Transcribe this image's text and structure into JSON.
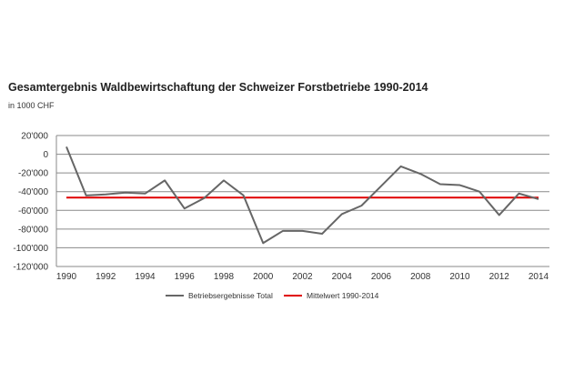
{
  "chart_data": {
    "type": "line",
    "title": "Gesamtergebnis Waldbewirtschaftung der Schweizer Forstbetriebe 1990-2014",
    "subtitle": "in 1000 CHF",
    "xlabel": "",
    "ylabel": "",
    "x": [
      1990,
      1991,
      1992,
      1993,
      1994,
      1995,
      1996,
      1997,
      1998,
      1999,
      2000,
      2001,
      2002,
      2003,
      2004,
      2005,
      2006,
      2007,
      2008,
      2009,
      2010,
      2011,
      2012,
      2013,
      2014
    ],
    "x_tick_labels": [
      "1990",
      "1992",
      "1994",
      "1996",
      "1998",
      "2000",
      "2002",
      "2004",
      "2006",
      "2008",
      "2010",
      "2012",
      "2014"
    ],
    "y_tick_labels": [
      "20'000",
      "0",
      "-20'000",
      "-40'000",
      "-60'000",
      "-80'000",
      "-100'000",
      "-120'000"
    ],
    "y_ticks": [
      20000,
      0,
      -20000,
      -40000,
      -60000,
      -80000,
      -100000,
      -120000
    ],
    "ylim": [
      -120000,
      20000
    ],
    "grid": true,
    "legend_position": "bottom",
    "series": [
      {
        "name": "Betriebsergebnisse Total",
        "color": "#666666",
        "values": [
          8000,
          -44000,
          -43000,
          -41000,
          -42000,
          -28000,
          -58000,
          -47000,
          -28000,
          -44000,
          -95000,
          -82000,
          -82000,
          -85000,
          -64000,
          -55000,
          -34000,
          -13000,
          -21000,
          -32000,
          -33000,
          -40000,
          -65000,
          -42000,
          -48000
        ]
      },
      {
        "name": "Mittelwert 1990-2014",
        "color": "#e00000",
        "values": [
          -46300,
          -46300,
          -46300,
          -46300,
          -46300,
          -46300,
          -46300,
          -46300,
          -46300,
          -46300,
          -46300,
          -46300,
          -46300,
          -46300,
          -46300,
          -46300,
          -46300,
          -46300,
          -46300,
          -46300,
          -46300,
          -46300,
          -46300,
          -46300,
          -46300
        ]
      }
    ]
  }
}
